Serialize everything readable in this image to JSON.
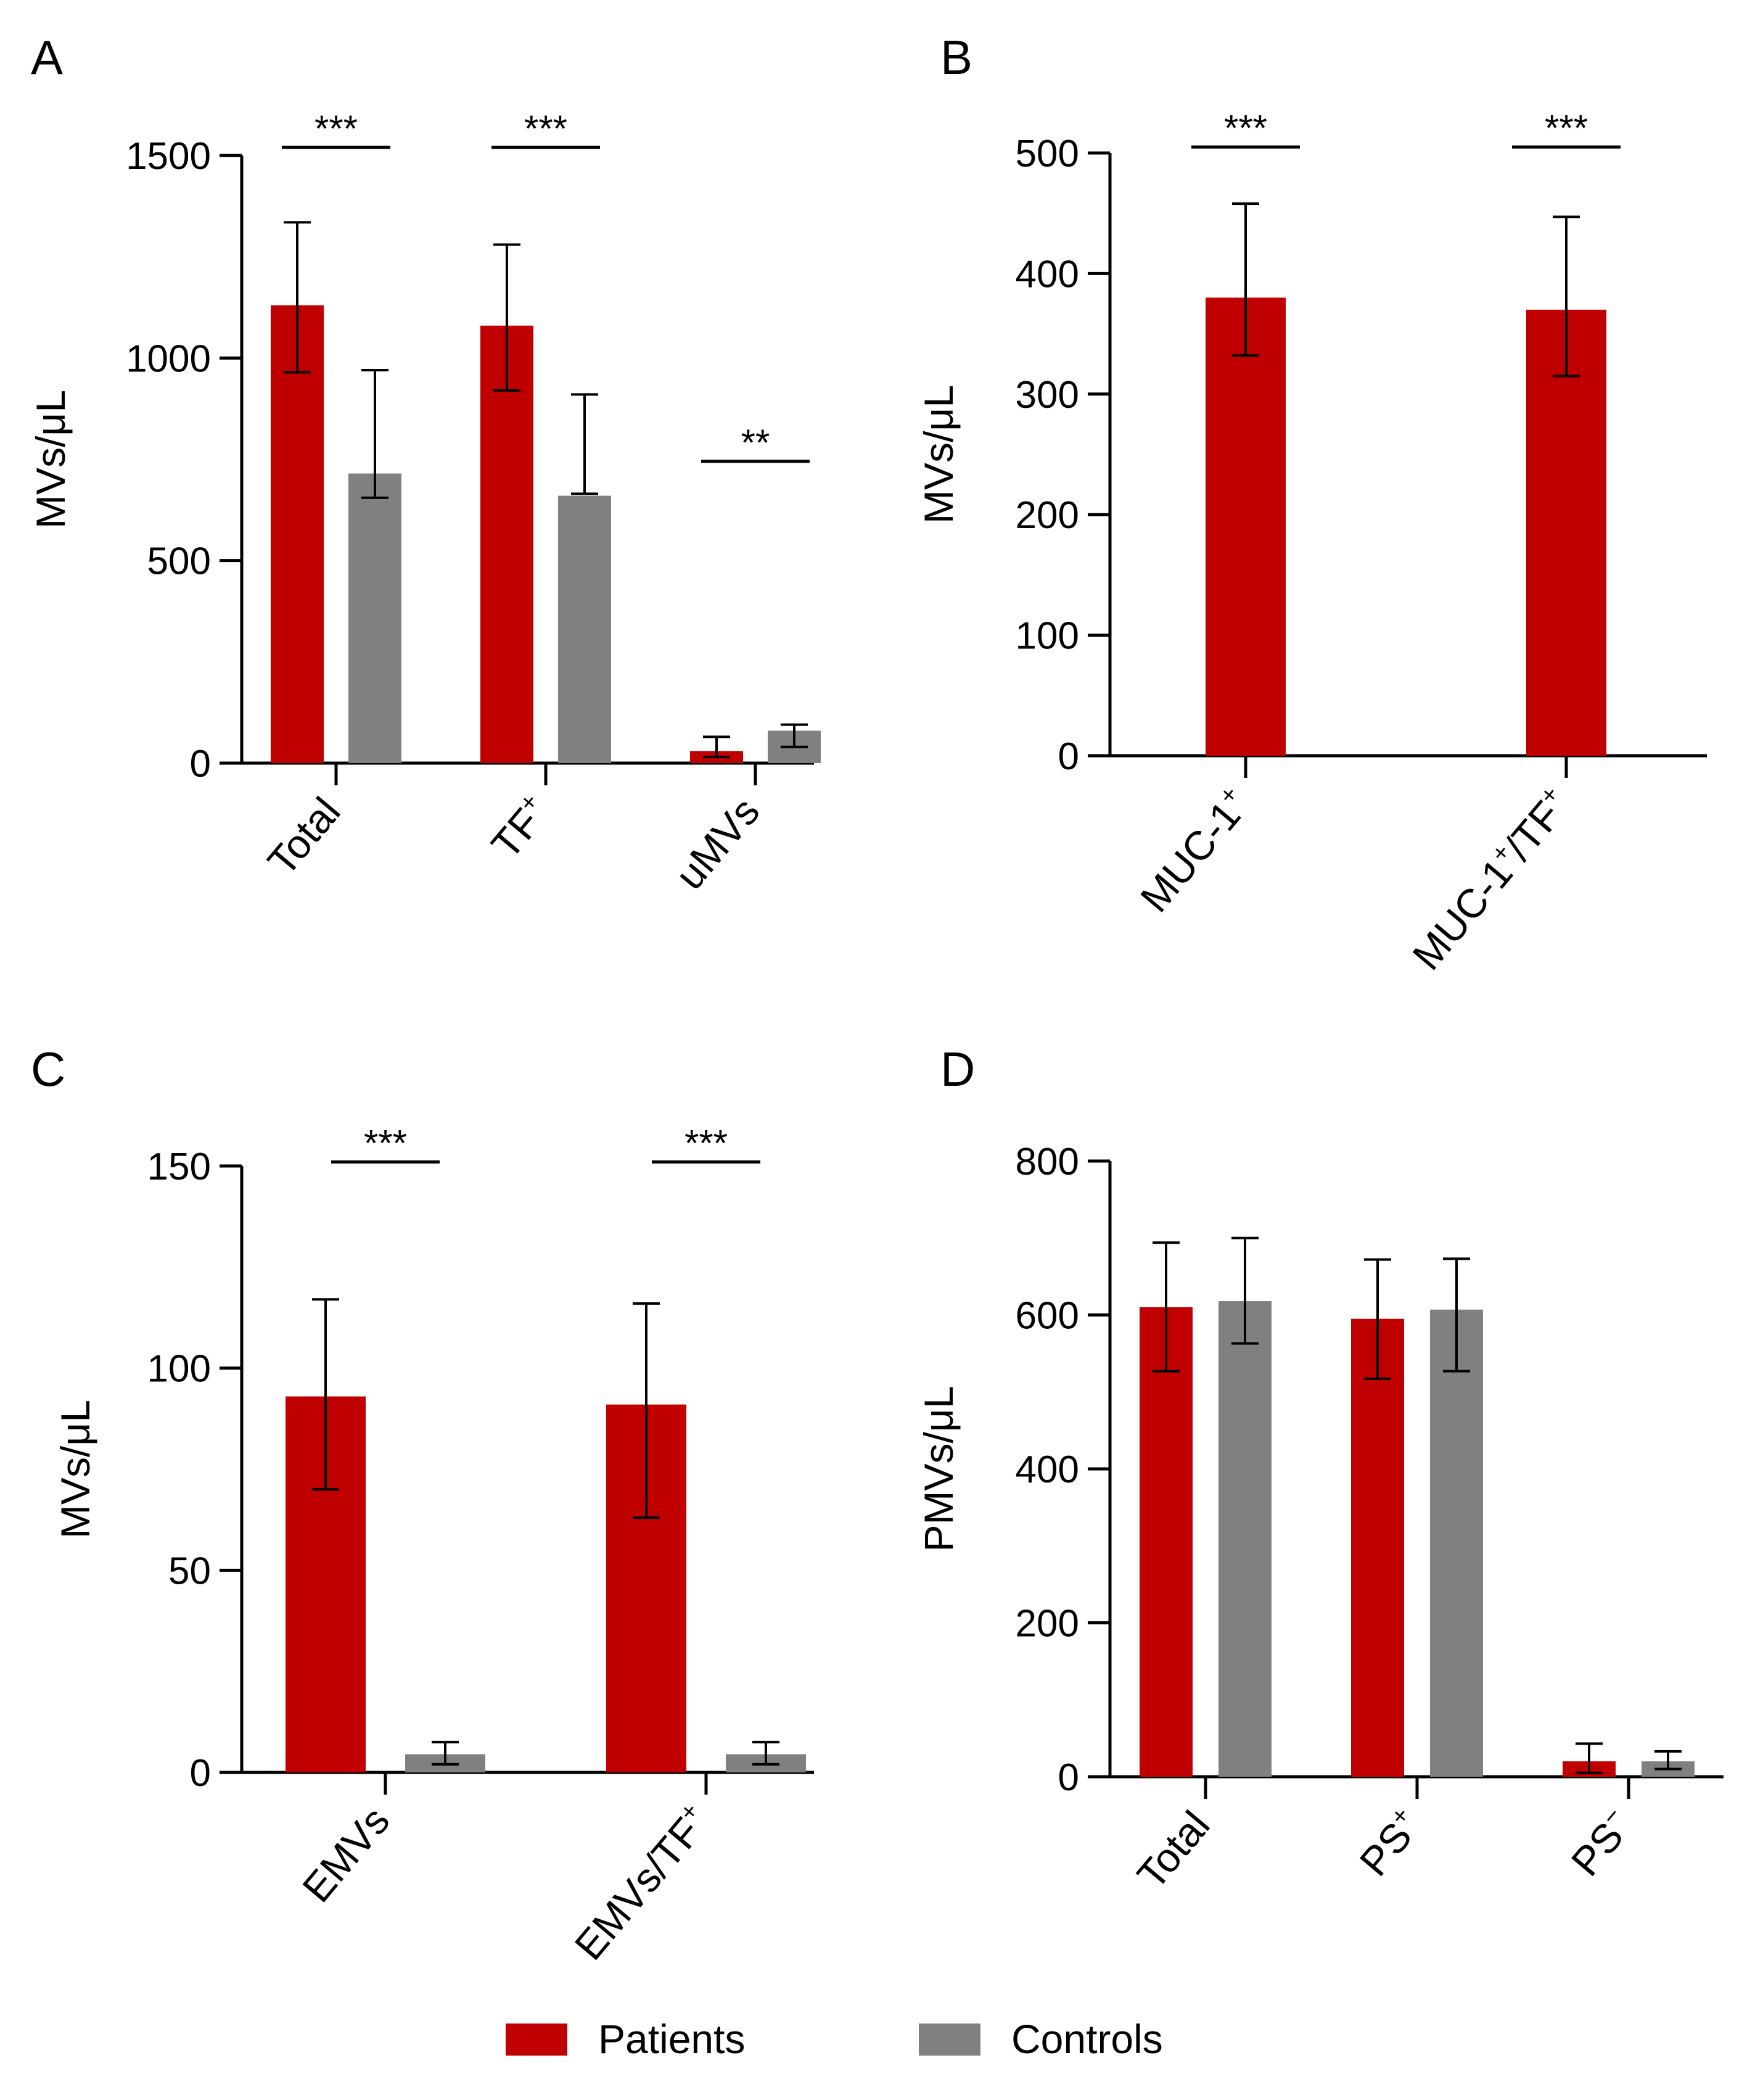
{
  "colors": {
    "patients": "#c00000",
    "controls": "#808080",
    "axis": "#000000"
  },
  "legend": {
    "patients_label": "Patients",
    "controls_label": "Controls"
  },
  "chart_data": [
    {
      "id": "A",
      "type": "bar",
      "panel_label": "A",
      "ylabel": "MVs/μL",
      "ylim": [
        0,
        1500
      ],
      "yticks": [
        0,
        500,
        1000,
        1500
      ],
      "categories": [
        {
          "base": "Total",
          "sup": ""
        },
        {
          "base": "TF",
          "sup": "+"
        },
        {
          "base": "uMVs",
          "sup": ""
        }
      ],
      "series": [
        {
          "name": "Patients",
          "values": [
            1130,
            1080,
            30
          ],
          "err_low": [
            965,
            920,
            15
          ],
          "err_high": [
            1335,
            1280,
            65
          ]
        },
        {
          "name": "Controls",
          "values": [
            715,
            660,
            80
          ],
          "err_low": [
            655,
            665,
            40
          ],
          "err_high": [
            970,
            910,
            95
          ]
        }
      ],
      "significance": [
        {
          "category": 0,
          "label": "***",
          "y": 1520
        },
        {
          "category": 1,
          "label": "***",
          "y": 1520
        },
        {
          "category": 2,
          "label": "**",
          "y": 745
        }
      ]
    },
    {
      "id": "B",
      "type": "bar",
      "panel_label": "B",
      "ylabel": "MVs/μL",
      "ylim": [
        0,
        500
      ],
      "yticks": [
        0,
        100,
        200,
        300,
        400,
        500
      ],
      "categories": [
        {
          "base": "MUC-1",
          "sup": "+"
        },
        {
          "base": "MUC-1",
          "sup": "+",
          "tail": "/TF",
          "sup2": "+"
        }
      ],
      "series": [
        {
          "name": "Patients",
          "values": [
            380,
            370
          ],
          "err_low": [
            332,
            315
          ],
          "err_high": [
            458,
            447
          ]
        }
      ],
      "significance": [
        {
          "category": 0,
          "label": "***",
          "y": 505
        },
        {
          "category": 1,
          "label": "***",
          "y": 505
        }
      ]
    },
    {
      "id": "C",
      "type": "bar",
      "panel_label": "C",
      "ylabel": "MVs/μL",
      "ylim": [
        0,
        150
      ],
      "yticks": [
        0,
        50,
        100,
        150
      ],
      "categories": [
        {
          "base": "EMVs",
          "sup": ""
        },
        {
          "base": "EMVs/TF",
          "sup": "+"
        }
      ],
      "series": [
        {
          "name": "Patients",
          "values": [
            93,
            91
          ],
          "err_low": [
            70,
            63
          ],
          "err_high": [
            117,
            116
          ]
        },
        {
          "name": "Controls",
          "values": [
            4.5,
            4.5
          ],
          "err_low": [
            2,
            2
          ],
          "err_high": [
            7.5,
            7.5
          ]
        }
      ],
      "significance": [
        {
          "category": 0,
          "label": "***",
          "y": 151
        },
        {
          "category": 1,
          "label": "***",
          "y": 151
        }
      ]
    },
    {
      "id": "D",
      "type": "bar",
      "panel_label": "D",
      "ylabel": "PMVs/μL",
      "ylim": [
        0,
        800
      ],
      "yticks": [
        0,
        200,
        400,
        600,
        800
      ],
      "categories": [
        {
          "base": "Total",
          "sup": ""
        },
        {
          "base": "PS",
          "sup": "+"
        },
        {
          "base": "PS",
          "sup": "−"
        }
      ],
      "series": [
        {
          "name": "Patients",
          "values": [
            610,
            595,
            20
          ],
          "err_low": [
            527,
            517,
            5
          ],
          "err_high": [
            694,
            672,
            43
          ]
        },
        {
          "name": "Controls",
          "values": [
            618,
            607,
            20
          ],
          "err_low": [
            563,
            527,
            10
          ],
          "err_high": [
            700,
            673,
            33
          ]
        }
      ],
      "significance": []
    }
  ]
}
